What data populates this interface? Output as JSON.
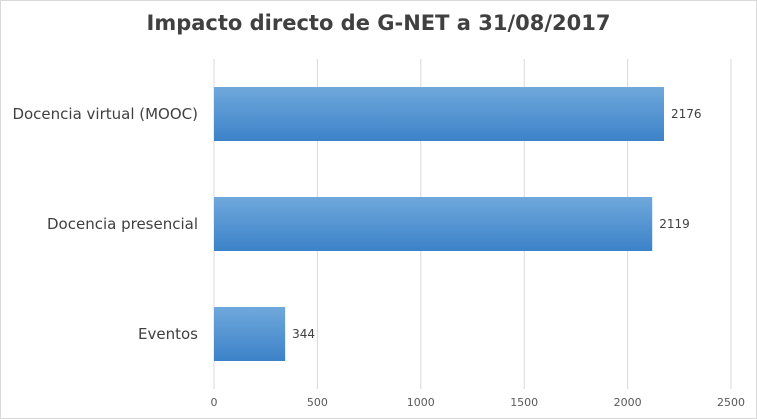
{
  "chart_data": {
    "type": "bar",
    "orientation": "horizontal",
    "title": "Impacto directo de G-NET a 31/08/2017",
    "categories": [
      "Docencia virtual (MOOC)",
      "Docencia presencial",
      "Eventos"
    ],
    "values": [
      2176,
      2119,
      344
    ],
    "data_labels": [
      "2176",
      "2119",
      "344"
    ],
    "xlabel": "",
    "ylabel": "",
    "xlim": [
      0,
      2500
    ],
    "x_ticks": [
      0,
      500,
      1000,
      1500,
      2000,
      2500
    ],
    "x_tick_labels": [
      "0",
      "500",
      "1000",
      "1500",
      "2000",
      "2500"
    ],
    "grid": "vertical",
    "legend": "none",
    "colors": {
      "bar_top": "#6fa8dc",
      "bar_bottom": "#3c82c8",
      "grid": "#d9d9d9"
    }
  }
}
